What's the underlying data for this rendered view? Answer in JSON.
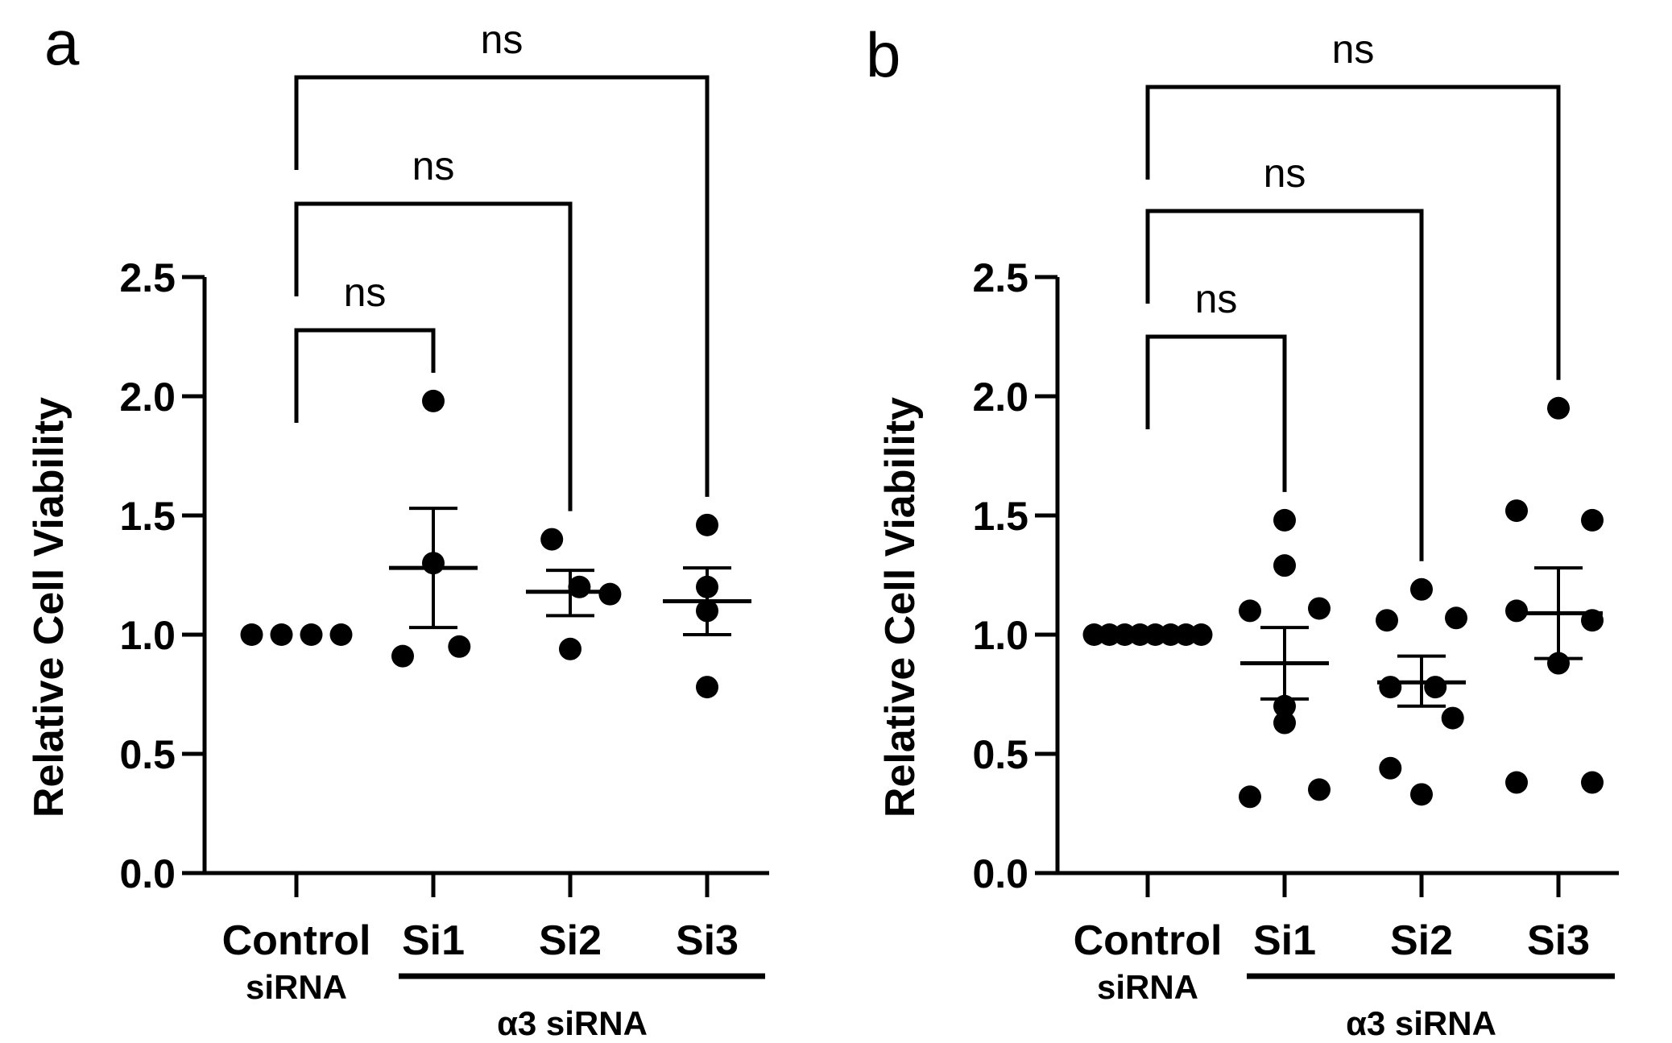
{
  "chart_data": [
    {
      "panel_label": "a",
      "type": "scatter",
      "ylabel": "Relative Cell Viability",
      "ylim": [
        0,
        2.5
      ],
      "yticks": [
        "0.0",
        "0.5",
        "1.0",
        "1.5",
        "2.0",
        "2.5"
      ],
      "categories": [
        {
          "label": "Control",
          "sublabel": "siRNA",
          "points": [
            1.0,
            1.0,
            1.0,
            1.0
          ],
          "mean": 1.0,
          "error": null
        },
        {
          "label": "Si1",
          "sublabel": "",
          "points": [
            1.98,
            1.3,
            0.91,
            0.95
          ],
          "mean": 1.28,
          "error": [
            1.03,
            1.53
          ]
        },
        {
          "label": "Si2",
          "sublabel": "",
          "points": [
            1.4,
            1.2,
            1.17,
            0.94
          ],
          "mean": 1.18,
          "error": [
            1.08,
            1.27
          ]
        },
        {
          "label": "Si3",
          "sublabel": "",
          "points": [
            1.46,
            1.2,
            1.1,
            0.78
          ],
          "mean": 1.14,
          "error": [
            1.0,
            1.28
          ]
        }
      ],
      "group_label": "α3 siRNA",
      "comparisons": [
        {
          "from": 0,
          "to": 1,
          "label": "ns"
        },
        {
          "from": 0,
          "to": 2,
          "label": "ns"
        },
        {
          "from": 0,
          "to": 3,
          "label": "ns"
        }
      ]
    },
    {
      "panel_label": "b",
      "type": "scatter",
      "ylabel": "Relative Cell Viability",
      "ylim": [
        0,
        2.5
      ],
      "yticks": [
        "0.0",
        "0.5",
        "1.0",
        "1.5",
        "2.0",
        "2.5"
      ],
      "categories": [
        {
          "label": "Control",
          "sublabel": "siRNA",
          "points": [
            1.0,
            1.0,
            1.0,
            1.0,
            1.0,
            1.0,
            1.0,
            1.0
          ],
          "mean": 1.0,
          "error": null
        },
        {
          "label": "Si1",
          "sublabel": "",
          "points": [
            1.48,
            1.29,
            1.1,
            1.11,
            0.7,
            0.63,
            0.32,
            0.35
          ],
          "mean": 0.88,
          "error": [
            0.73,
            1.03
          ]
        },
        {
          "label": "Si2",
          "sublabel": "",
          "points": [
            1.19,
            1.06,
            1.07,
            0.78,
            0.78,
            0.65,
            0.44,
            0.33
          ],
          "mean": 0.8,
          "error": [
            0.7,
            0.91
          ]
        },
        {
          "label": "Si3",
          "sublabel": "",
          "points": [
            1.95,
            1.52,
            1.48,
            1.1,
            1.06,
            0.88,
            0.38,
            0.38
          ],
          "mean": 1.09,
          "error": [
            0.9,
            1.28
          ]
        }
      ],
      "group_label": "α3 siRNA",
      "comparisons": [
        {
          "from": 0,
          "to": 1,
          "label": "ns"
        },
        {
          "from": 0,
          "to": 2,
          "label": "ns"
        },
        {
          "from": 0,
          "to": 3,
          "label": "ns"
        }
      ]
    }
  ]
}
